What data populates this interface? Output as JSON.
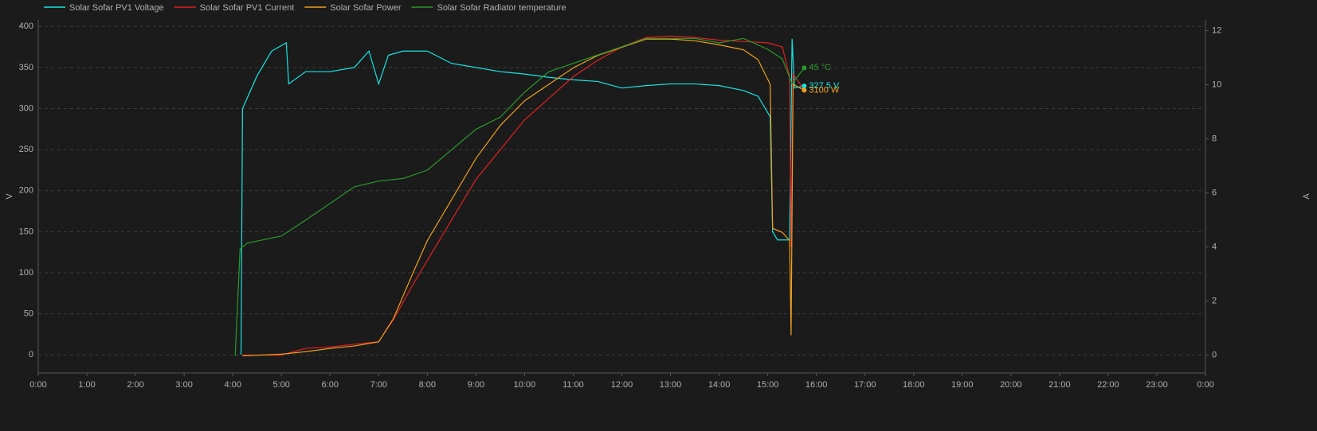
{
  "chart_data": {
    "type": "line",
    "ylabel": "V",
    "y2label": "A",
    "grid": true,
    "legend": "top-left",
    "xlim": [
      0,
      24
    ],
    "xticks": [
      {
        "value": 0,
        "label": "0:00"
      },
      {
        "value": 1,
        "label": "1:00"
      },
      {
        "value": 2,
        "label": "2:00"
      },
      {
        "value": 3,
        "label": "3:00"
      },
      {
        "value": 4,
        "label": "4:00"
      },
      {
        "value": 5,
        "label": "5:00"
      },
      {
        "value": 6,
        "label": "6:00"
      },
      {
        "value": 7,
        "label": "7:00"
      },
      {
        "value": 8,
        "label": "8:00"
      },
      {
        "value": 9,
        "label": "9:00"
      },
      {
        "value": 10,
        "label": "10:00"
      },
      {
        "value": 11,
        "label": "11:00"
      },
      {
        "value": 12,
        "label": "12:00"
      },
      {
        "value": 13,
        "label": "13:00"
      },
      {
        "value": 14,
        "label": "14:00"
      },
      {
        "value": 15,
        "label": "15:00"
      },
      {
        "value": 16,
        "label": "16:00"
      },
      {
        "value": 17,
        "label": "17:00"
      },
      {
        "value": 18,
        "label": "18:00"
      },
      {
        "value": 19,
        "label": "19:00"
      },
      {
        "value": 20,
        "label": "20:00"
      },
      {
        "value": 21,
        "label": "21:00"
      },
      {
        "value": 22,
        "label": "22:00"
      },
      {
        "value": 23,
        "label": "23:00"
      },
      {
        "value": 24,
        "label": "0:00"
      }
    ],
    "ylim": [
      -22,
      408
    ],
    "yticks": [
      0,
      50,
      100,
      150,
      200,
      250,
      300,
      350,
      400
    ],
    "y2lim": [
      -0.66,
      12.4
    ],
    "y2ticks": [
      0,
      2,
      4,
      6,
      8,
      10,
      12
    ],
    "y3lim": [
      -200,
      3920
    ],
    "y4lim": [
      -2.7,
      52.5
    ],
    "series": [
      {
        "name": "Solar Sofar PV1 Voltage",
        "color": "#19e3e3",
        "axis": "y",
        "x": [
          4.17,
          4.2,
          4.5,
          4.8,
          5.1,
          5.15,
          5.5,
          6,
          6.5,
          6.8,
          7.0,
          7.2,
          7.5,
          8.0,
          8.5,
          9.0,
          9.5,
          10,
          10.5,
          11,
          11.5,
          12,
          12.5,
          13,
          13.5,
          14,
          14.5,
          14.8,
          15.05,
          15.1,
          15.2,
          15.45,
          15.5,
          15.55,
          15.75
        ],
        "values": [
          0,
          300,
          340,
          370,
          380,
          330,
          345,
          345,
          350,
          370,
          330,
          365,
          370,
          370,
          355,
          350,
          345,
          342,
          338,
          335,
          333,
          325,
          328,
          330,
          330,
          328,
          322,
          315,
          290,
          150,
          140,
          140,
          385,
          325,
          327.5
        ],
        "last_label": "327.5 V"
      },
      {
        "name": "Solar Sofar PV1 Current",
        "color": "#e02020",
        "axis": "y2",
        "x": [
          4.2,
          5,
          5.5,
          6,
          6.5,
          7,
          7.3,
          7.7,
          8,
          8.5,
          9,
          9.5,
          10,
          10.5,
          11,
          11.5,
          12,
          12.5,
          13,
          13.5,
          14,
          14.5,
          15,
          15.3,
          15.45,
          15.48,
          15.52,
          15.6,
          15.75
        ],
        "values": [
          0,
          0,
          0.25,
          0.3,
          0.4,
          0.5,
          1.3,
          2.6,
          3.5,
          5.0,
          6.5,
          7.6,
          8.7,
          9.5,
          10.3,
          10.9,
          11.4,
          11.75,
          11.8,
          11.75,
          11.65,
          11.6,
          11.55,
          11.4,
          10.3,
          4.0,
          10.4,
          10.2,
          9.8
        ]
      },
      {
        "name": "Solar Sofar Power",
        "color": "#f0a020",
        "axis": "y3",
        "x": [
          4.2,
          5,
          5.5,
          6,
          6.5,
          7,
          7.3,
          7.7,
          8,
          8.5,
          9,
          9.5,
          10,
          10.5,
          11,
          11.5,
          12,
          12.5,
          13,
          13.5,
          14,
          14.5,
          14.8,
          15.05,
          15.1,
          15.3,
          15.45,
          15.48,
          15.52,
          15.75
        ],
        "values": [
          0,
          19,
          48,
          86,
          115,
          163,
          432,
          960,
          1344,
          1824,
          2304,
          2688,
          2976,
          3168,
          3360,
          3504,
          3600,
          3696,
          3696,
          3677,
          3629,
          3571,
          3456,
          3168,
          1488,
          1440,
          1344,
          240,
          3168,
          3100
        ],
        "last_label": "3100 W"
      },
      {
        "name": "Solar Sofar Radiator temperature",
        "color": "#2a9a2a",
        "axis": "y4",
        "x": [
          4.05,
          4.15,
          4.3,
          5,
          5.5,
          6,
          6.5,
          7,
          7.5,
          8,
          8.5,
          9,
          9.5,
          10,
          10.5,
          11,
          11.5,
          12,
          12.5,
          13,
          13.5,
          14,
          14.5,
          15,
          15.3,
          15.5,
          15.75
        ],
        "values": [
          0,
          16.7,
          17.6,
          18.7,
          21.2,
          23.8,
          26.4,
          27.3,
          27.7,
          29,
          32.2,
          35.4,
          37.3,
          41.2,
          44.4,
          45.7,
          47,
          48.3,
          49.6,
          49.6,
          49.6,
          48.9,
          49.6,
          47.9,
          46.4,
          42.5,
          45
        ],
        "last_label": "45 °C"
      }
    ]
  }
}
